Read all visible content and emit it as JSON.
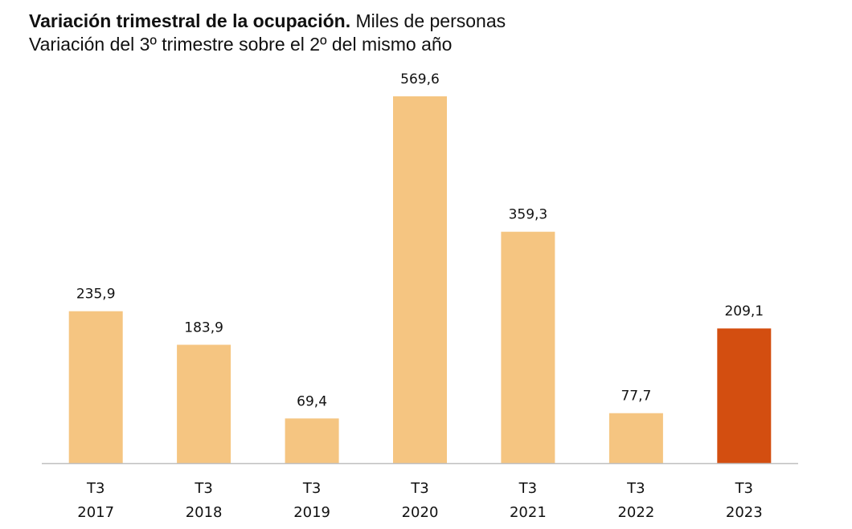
{
  "chart_data": {
    "type": "bar",
    "title": "Variación trimestral de la ocupación.",
    "title_unit": "Miles de personas",
    "subtitle": "Variación del 3º trimestre sobre el 2º del mismo año",
    "categories": [
      [
        "T3",
        "2017"
      ],
      [
        "T3",
        "2018"
      ],
      [
        "T3",
        "2019"
      ],
      [
        "T3",
        "2020"
      ],
      [
        "T3",
        "2021"
      ],
      [
        "T3",
        "2022"
      ],
      [
        "T3",
        "2023"
      ]
    ],
    "values": [
      235.9,
      183.9,
      69.4,
      569.6,
      359.3,
      77.7,
      209.1
    ],
    "value_labels": [
      "235,9",
      "183,9",
      "69,4",
      "569,6",
      "359,3",
      "77,7",
      "209,1"
    ],
    "highlight_index": 6,
    "ylim": [
      0,
      600
    ],
    "grid": false,
    "xlabel": "",
    "ylabel": "",
    "colors": {
      "bar": "#F5C581",
      "highlight": "#D34E10",
      "axis": "#BFBFBF",
      "text": "#111111"
    }
  }
}
